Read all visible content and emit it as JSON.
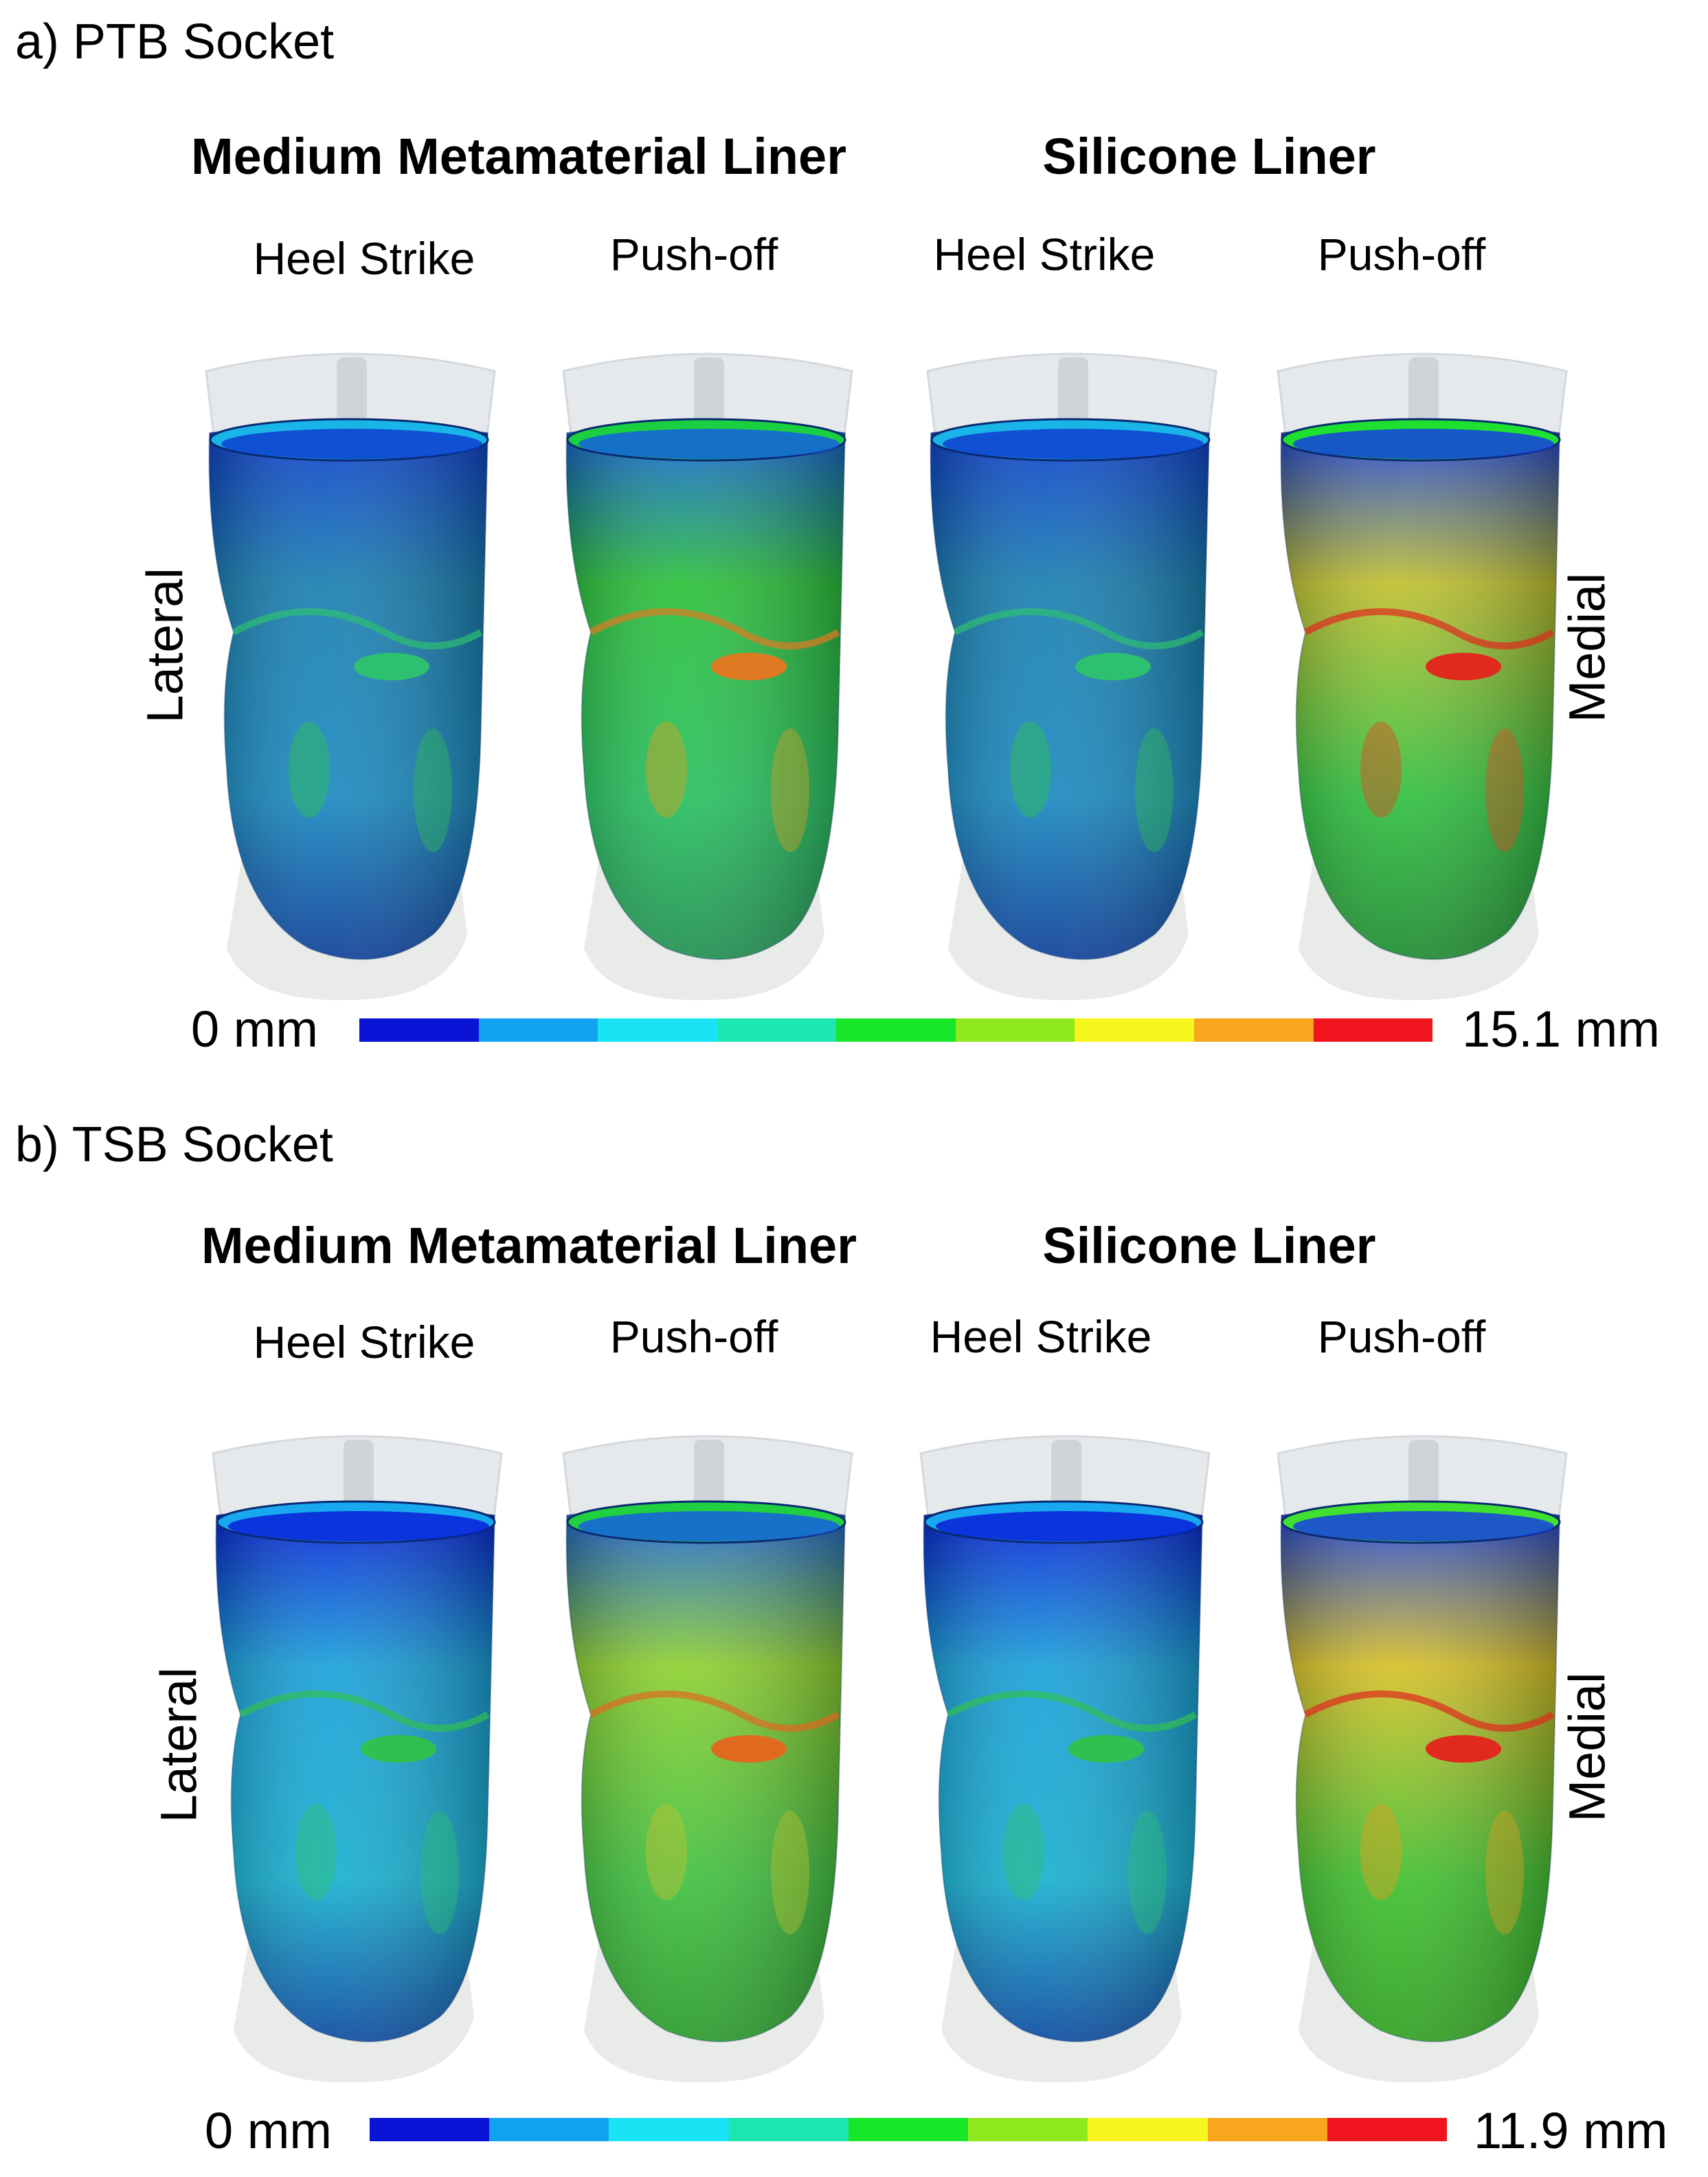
{
  "figure": {
    "panels": [
      {
        "title": "a) PTB Socket",
        "groups": [
          "Medium Metamaterial Liner",
          "Silicone Liner"
        ],
        "phases": [
          "Heel Strike",
          "Push-off",
          "Heel Strike",
          "Push-off"
        ],
        "left_label": "Lateral",
        "right_label": "Medial",
        "scale_min": "0 mm",
        "scale_max": "15.1 mm"
      },
      {
        "title": "b) TSB Socket",
        "groups": [
          "Medium Metamaterial Liner",
          "Silicone Liner"
        ],
        "phases": [
          "Heel Strike",
          "Push-off",
          "Heel Strike",
          "Push-off"
        ],
        "left_label": "Lateral",
        "right_label": "Medial",
        "scale_min": "0 mm",
        "scale_max": "11.9 mm"
      }
    ],
    "colormap": [
      "#0a14d6",
      "#12a2f0",
      "#18e4f5",
      "#1ee6b0",
      "#18e628",
      "#8fe81e",
      "#f7f51e",
      "#f7a61e",
      "#f0141e"
    ]
  }
}
